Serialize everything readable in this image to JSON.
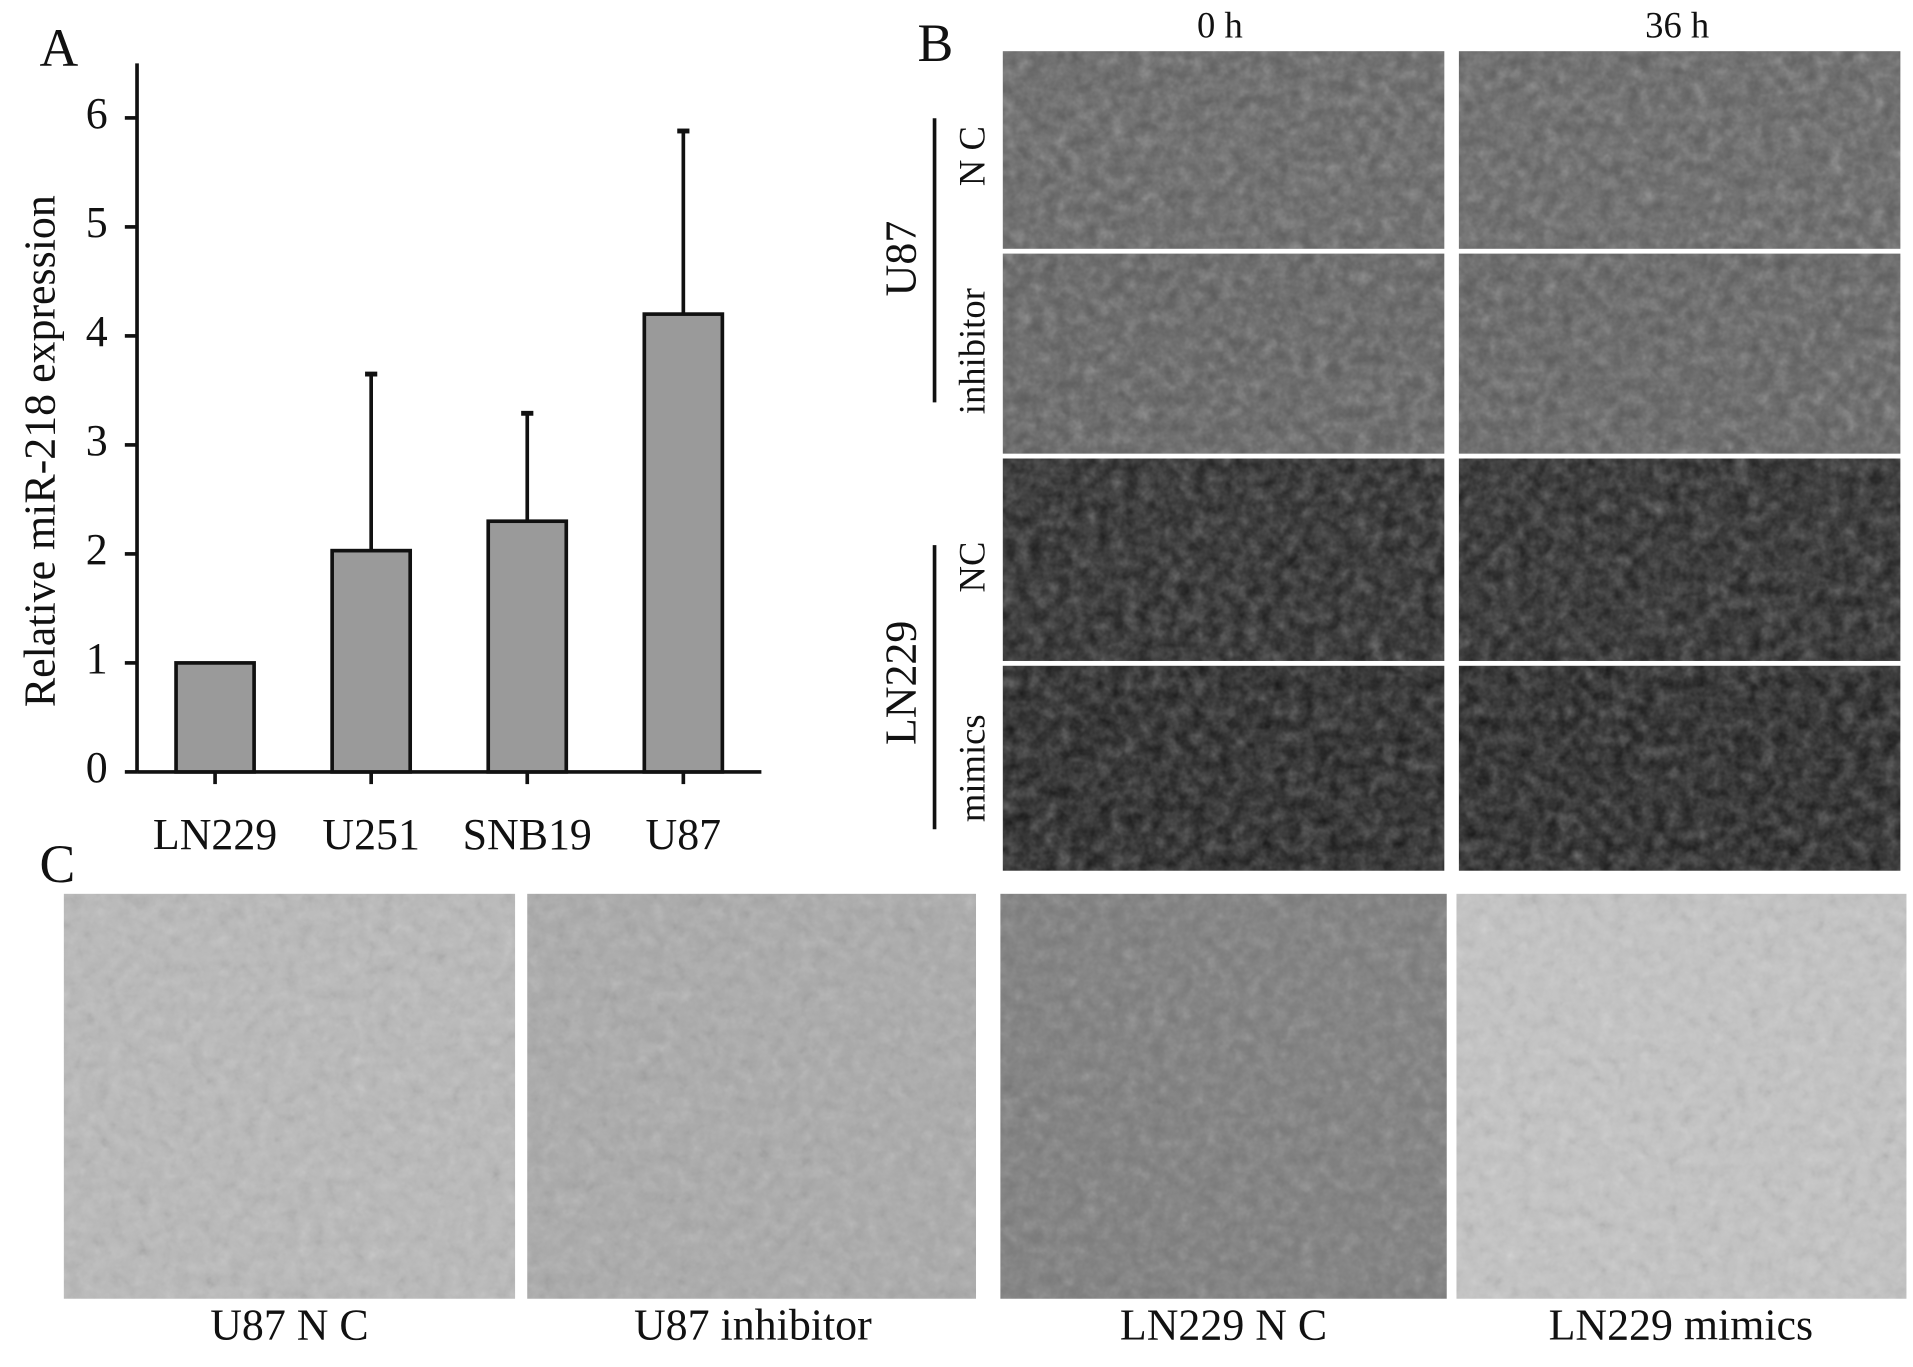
{
  "chart_data": {
    "type": "bar",
    "y_label": "Relative miR-218 expression",
    "categories": [
      "LN229",
      "U251",
      "SNB19",
      "U87"
    ],
    "values": [
      1.0,
      2.03,
      2.3,
      4.2
    ],
    "errors": [
      0,
      1.62,
      0.99,
      1.68
    ],
    "color": "#9a9a9a",
    "ylim": [
      0,
      6.5
    ],
    "yticks": [
      0,
      1,
      2,
      3,
      4,
      5,
      6
    ],
    "grid": false
  },
  "panel_labels": [
    "A",
    "B",
    "C"
  ],
  "scratch_assay": {
    "columns": [
      "0 h",
      "36 h"
    ],
    "groups": [
      {
        "label": "U87",
        "rows": [
          "N C",
          "inhibitor"
        ]
      },
      {
        "label": "LN229",
        "rows": [
          "NC",
          "mimics"
        ]
      }
    ]
  },
  "transwell": {
    "captions": [
      "U87 N C",
      "U87 inhibitor",
      "LN229 N C",
      "LN229 mimics"
    ]
  }
}
